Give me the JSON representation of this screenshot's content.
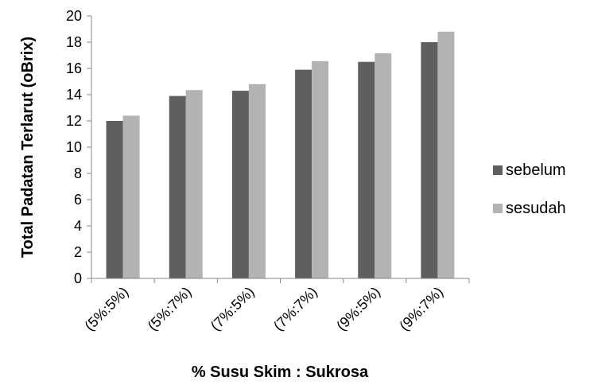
{
  "chart_data": {
    "type": "bar",
    "categories": [
      "(5%:5%)",
      "(5%:7%)",
      "(7%:5%)",
      "(7%:7%)",
      "(9%:5%)",
      "(9%:7%)"
    ],
    "series": [
      {
        "name": "sebelum",
        "values": [
          12.0,
          13.9,
          14.3,
          15.9,
          16.5,
          18.0
        ],
        "color": "#5f5f5f"
      },
      {
        "name": "sesudah",
        "values": [
          12.4,
          14.35,
          14.8,
          16.55,
          17.15,
          18.8
        ],
        "color": "#b3b3b3"
      }
    ],
    "title": "",
    "xlabel": "% Susu Skim : Sukrosa",
    "ylabel": "Total Padatan Terlarut (oBrix)",
    "ylim": [
      0,
      20
    ],
    "yticks": [
      0,
      2,
      4,
      6,
      8,
      10,
      12,
      14,
      16,
      18,
      20
    ],
    "grid": false,
    "legend_position": "right"
  }
}
